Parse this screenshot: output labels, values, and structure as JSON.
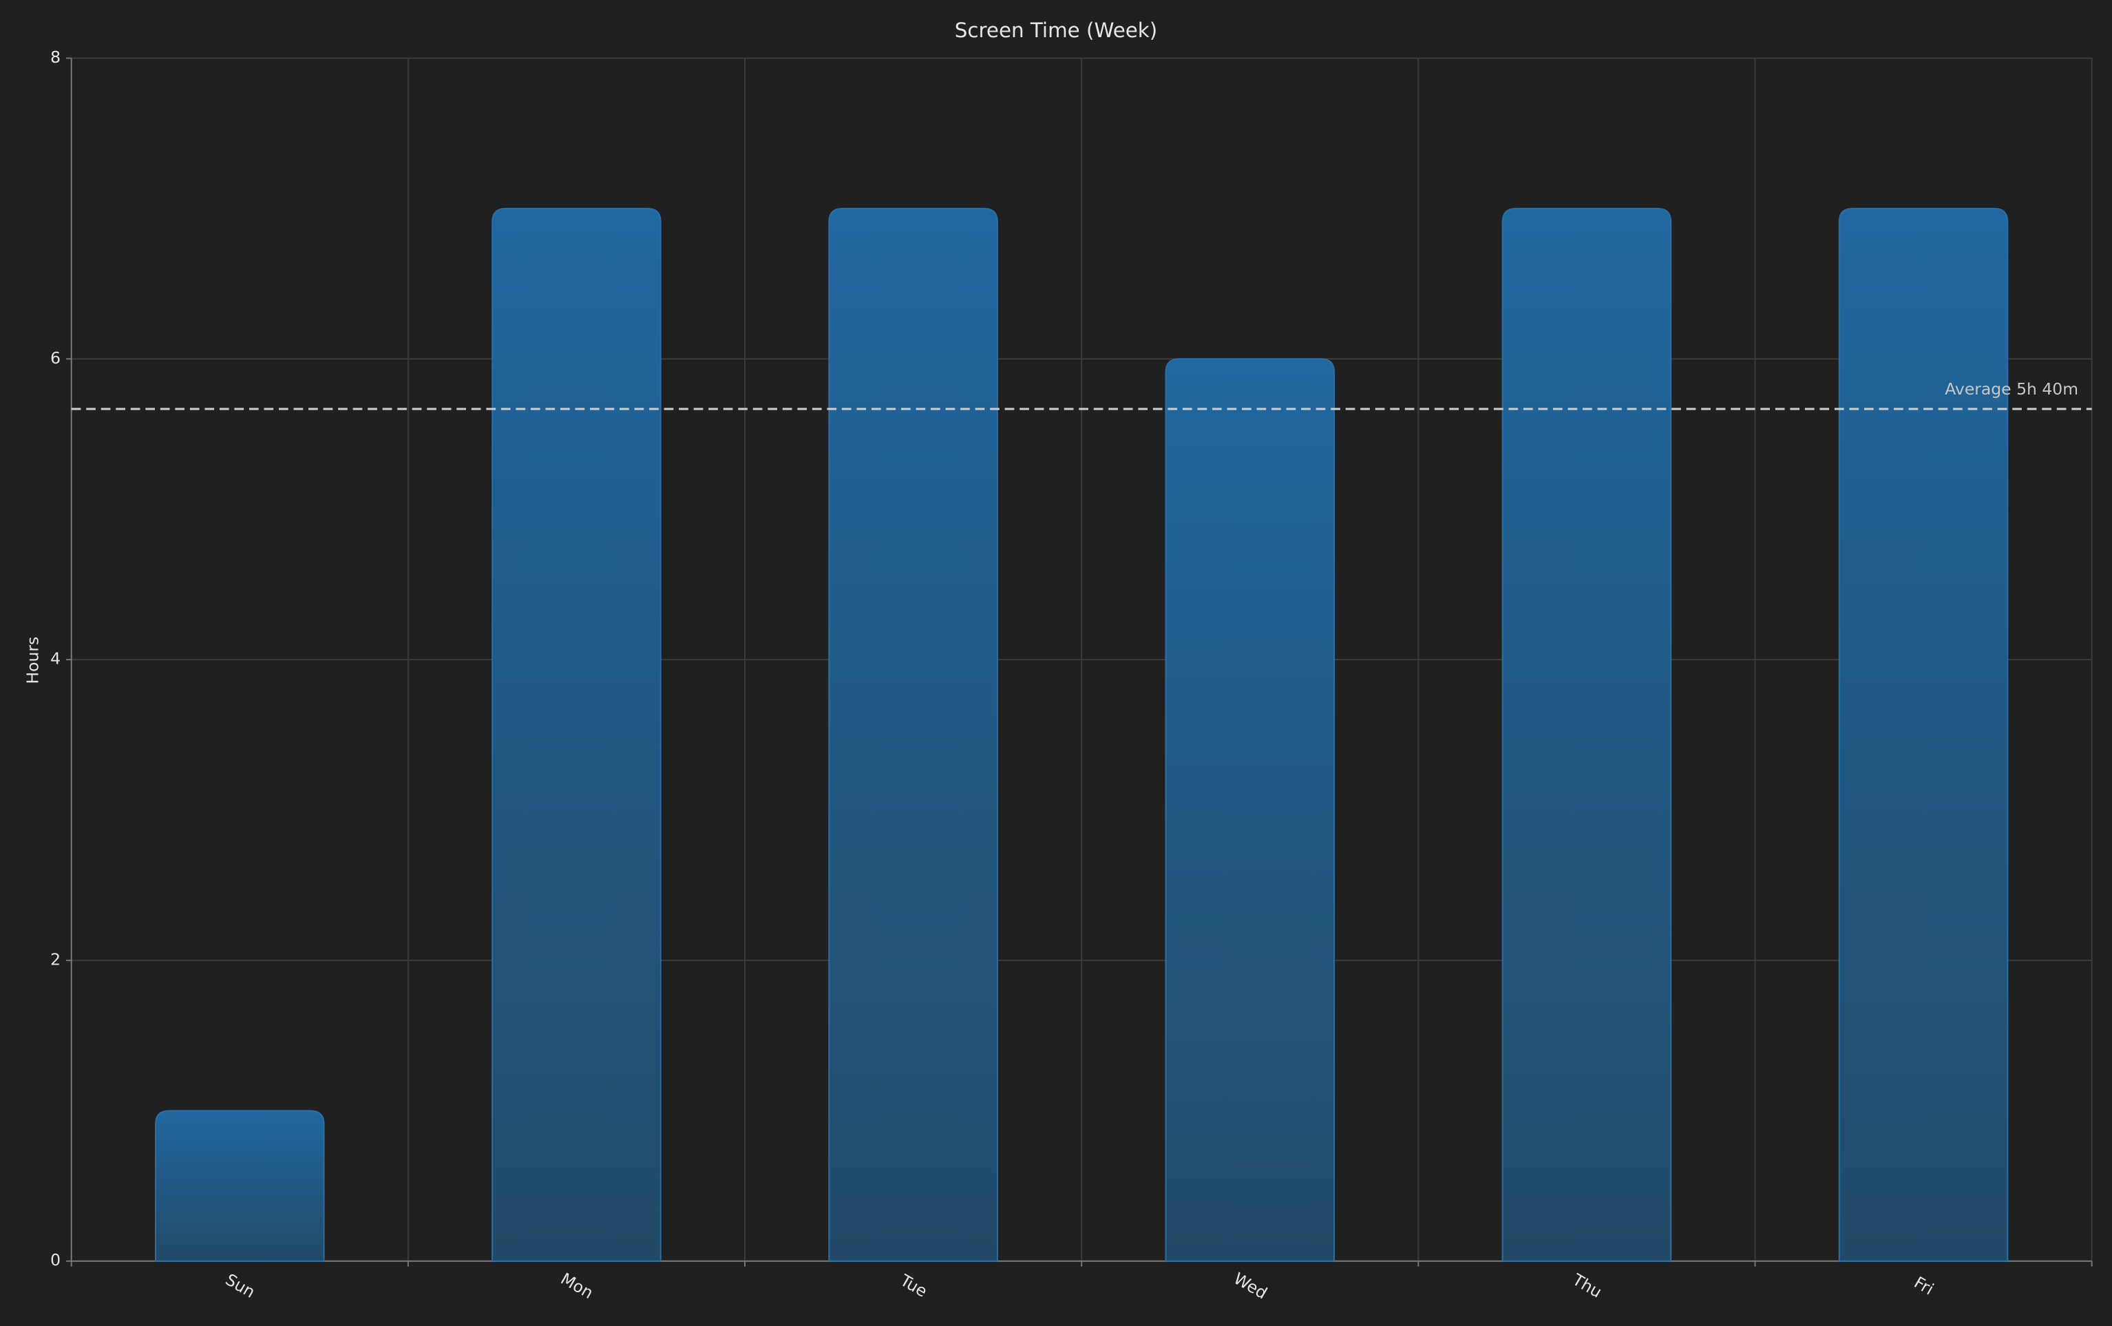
{
  "chart_data": {
    "type": "bar",
    "title": "Screen Time (Week)",
    "y_label": "Hours",
    "categories": [
      "Sun",
      "Mon",
      "Tue",
      "Wed",
      "Thu",
      "Fri"
    ],
    "values": [
      1,
      7,
      7,
      6,
      7,
      7
    ],
    "color": "#2a6fa8",
    "ylim": [
      0,
      8
    ],
    "yticks": [
      0,
      2,
      4,
      6,
      8
    ],
    "grid": true,
    "average": {
      "value": 5.667,
      "label": "Average 5h 40m"
    }
  }
}
